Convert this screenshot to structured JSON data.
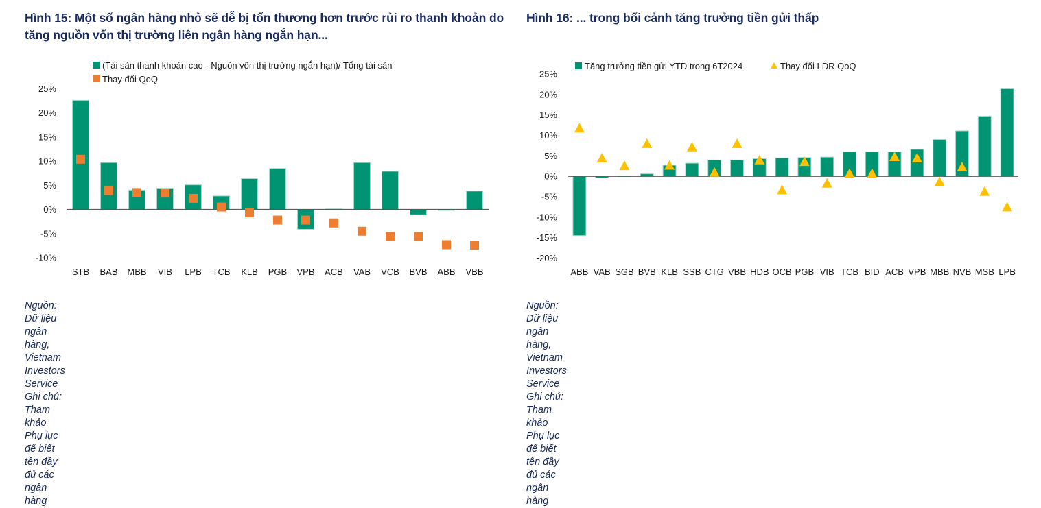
{
  "figures": [
    {
      "title": "Hình 15: Một số ngân hàng nhỏ sẽ dễ bị tổn thương hơn trước rủi ro thanh khoản do tăng nguồn vốn thị trường liên ngân hàng ngắn hạn...",
      "footer": {
        "source": "Nguồn: Dữ liệu ngân hàng, Vietnam Investors Service",
        "note": "Ghi chú: Tham khảo Phụ lục để biết tên đầy đủ các ngân hàng"
      }
    },
    {
      "title": "Hình 16: ... trong bối cảnh tăng trưởng tiền gửi thấp",
      "footer": {
        "source": "Nguồn: Dữ liệu ngân hàng, Vietnam Investors Service",
        "note": "Ghi chú: Tham khảo Phụ lục để biết tên đầy đủ các ngân hàng"
      }
    }
  ],
  "colors": {
    "bar": "#009473",
    "bar_edge": "#a8d8cc",
    "square": "#ed7d31",
    "triangle": "#ffc000",
    "axis": "#595959",
    "title": "#1b2a5c"
  },
  "chart_data": [
    {
      "type": "bar",
      "title": "Hình 15: Một số ngân hàng nhỏ sẽ dễ bị tổn thương hơn trước rủi ro thanh khoản do tăng nguồn vốn thị trường liên ngân hàng ngắn hạn...",
      "xlabel": "",
      "ylabel": "",
      "ylim": [
        -10,
        25
      ],
      "yticks": [
        25,
        20,
        15,
        10,
        5,
        0,
        -5,
        -10
      ],
      "ytick_labels": [
        "25%",
        "20%",
        "15%",
        "10%",
        "5%",
        "0%",
        "-5%",
        "-10%"
      ],
      "grid": false,
      "legend_position": "top",
      "categories": [
        "STB",
        "BAB",
        "MBB",
        "VIB",
        "LPB",
        "TCB",
        "KLB",
        "PGB",
        "VPB",
        "ACB",
        "VAB",
        "VCB",
        "BVB",
        "ABB",
        "VBB"
      ],
      "series": [
        {
          "name": "(Tài sản thanh khoản cao - Nguồn vốn thị trường ngắn hạn)/ Tổng tài sản",
          "kind": "bar",
          "marker": "square",
          "values": [
            22.6,
            9.7,
            4.0,
            4.4,
            5.1,
            2.8,
            6.4,
            8.5,
            -4.1,
            0.1,
            9.7,
            7.9,
            -1.1,
            -0.2,
            3.8
          ]
        },
        {
          "name": "Thay đổi QoQ",
          "kind": "marker",
          "marker": "square",
          "values": [
            10.4,
            3.9,
            3.5,
            3.4,
            2.3,
            0.5,
            -0.7,
            -2.2,
            -2.2,
            -2.8,
            -4.5,
            -5.6,
            -5.6,
            -7.3,
            -7.4
          ]
        }
      ]
    },
    {
      "type": "bar",
      "title": "Hình 16: ... trong bối cảnh tăng trưởng tiền gửi thấp",
      "xlabel": "",
      "ylabel": "",
      "ylim": [
        -20,
        25
      ],
      "yticks": [
        25,
        20,
        15,
        10,
        5,
        0,
        -5,
        -10,
        -15,
        -20
      ],
      "ytick_labels": [
        "25%",
        "20%",
        "15%",
        "10%",
        "5%",
        "0%",
        "-5%",
        "-10%",
        "-15%",
        "-20%"
      ],
      "grid": false,
      "legend_position": "top",
      "categories": [
        "ABB",
        "VAB",
        "SGB",
        "BVB",
        "KLB",
        "SSB",
        "CTG",
        "VBB",
        "HDB",
        "OCB",
        "PGB",
        "VIB",
        "TCB",
        "BID",
        "ACB",
        "VPB",
        "MBB",
        "NVB",
        "MSB",
        "LPB"
      ],
      "series": [
        {
          "name": "Tăng trưởng tiền gửi YTD trong 6T2024",
          "kind": "bar",
          "marker": "square",
          "values": [
            -14.5,
            -0.4,
            0.1,
            0.6,
            2.7,
            3.2,
            4.0,
            4.0,
            4.3,
            4.5,
            4.6,
            4.7,
            6.0,
            6.0,
            6.0,
            6.6,
            9.0,
            11.1,
            14.7,
            21.4
          ]
        },
        {
          "name": "Thay đổi LDR QoQ",
          "kind": "marker",
          "marker": "triangle",
          "values": [
            11.8,
            4.5,
            2.6,
            8.0,
            2.7,
            7.2,
            1.0,
            8.0,
            4.0,
            -3.3,
            3.6,
            -1.7,
            0.7,
            0.7,
            4.8,
            4.5,
            -1.3,
            2.3,
            -3.7,
            -7.5
          ]
        }
      ]
    }
  ]
}
